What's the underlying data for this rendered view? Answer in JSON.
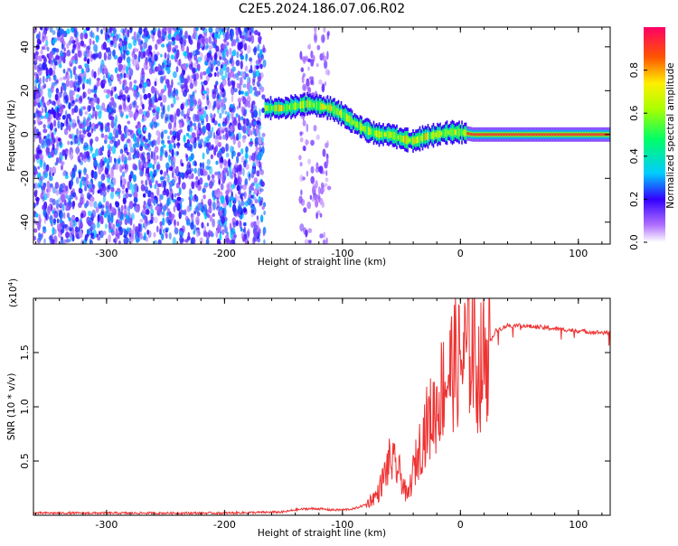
{
  "chart_data": [
    {
      "type": "heatmap",
      "title": "C2E5.2024.186.07.06.R02",
      "xlabel": "Height of straight line (km)",
      "ylabel": "Frequency (Hz)",
      "xlim": [
        -362,
        127
      ],
      "ylim": [
        -50,
        49
      ],
      "xticks": [
        -300,
        -200,
        -100,
        0,
        100
      ],
      "xtick_labels": [
        "-300",
        "-200",
        "-100",
        "0",
        "100"
      ],
      "yticks": [
        -40,
        -20,
        0,
        20,
        40
      ],
      "ytick_labels": [
        "-40",
        "-20",
        "0",
        "20",
        "40"
      ],
      "colorbar": {
        "label": "Normalized spectral amplitude",
        "range": [
          0,
          1
        ],
        "ticks": [
          0.0,
          0.2,
          0.4,
          0.6,
          0.8
        ],
        "tick_labels": [
          "0.0",
          "0.2",
          "0.4",
          "0.6",
          "0.8"
        ]
      },
      "noise_regions": [
        {
          "x_range": [
            -362,
            -166
          ],
          "level": 0.25
        },
        {
          "x_range": [
            -136,
            -111
          ],
          "level": 0.1
        }
      ],
      "signal_track": {
        "x": [
          -166,
          -150,
          -140,
          -130,
          -120,
          -110,
          -100,
          -90,
          -80,
          -70,
          -60,
          -50,
          -40,
          -30,
          -20,
          -10,
          0,
          10,
          50,
          127
        ],
        "y": [
          12,
          12,
          13,
          14,
          13,
          12,
          9,
          5,
          2,
          0,
          0,
          -2,
          -3,
          -1,
          0,
          1,
          1,
          0,
          0,
          0
        ]
      }
    },
    {
      "type": "line",
      "xlabel": "Height of straight line (km)",
      "ylabel": "SNR (10 * v/v)",
      "y_multiplier": "(x10",
      "y_exponent": "4",
      "y_close": ")",
      "xlim": [
        -362,
        127
      ],
      "ylim": [
        0,
        2.0
      ],
      "xticks": [
        -300,
        -200,
        -100,
        0,
        100
      ],
      "xtick_labels": [
        "-300",
        "-200",
        "-100",
        "0",
        "100"
      ],
      "yticks": [
        0.5,
        1.0,
        1.5
      ],
      "ytick_labels": [
        "0.5",
        "1.0",
        "1.5"
      ],
      "color": "#ee3333",
      "series": [
        {
          "name": "SNR",
          "x": [
            -362,
            -300,
            -200,
            -150,
            -140,
            -130,
            -120,
            -110,
            -100,
            -90,
            -80,
            -70,
            -65,
            -60,
            -55,
            -50,
            -45,
            -40,
            -35,
            -30,
            -25,
            -20,
            -15,
            -10,
            -5,
            0,
            5,
            10,
            15,
            20,
            25,
            30,
            40,
            50,
            60,
            70,
            80,
            90,
            100,
            110,
            127
          ],
          "y": [
            0.02,
            0.02,
            0.02,
            0.03,
            0.05,
            0.06,
            0.06,
            0.05,
            0.05,
            0.06,
            0.1,
            0.2,
            0.35,
            0.5,
            0.45,
            0.35,
            0.15,
            0.4,
            0.6,
            0.8,
            0.9,
            1.0,
            1.2,
            1.3,
            1.4,
            1.4,
            1.5,
            1.6,
            1.3,
            1.45,
            1.6,
            1.7,
            1.75,
            1.75,
            1.74,
            1.73,
            1.72,
            1.71,
            1.7,
            1.69,
            1.68
          ]
        }
      ]
    }
  ]
}
